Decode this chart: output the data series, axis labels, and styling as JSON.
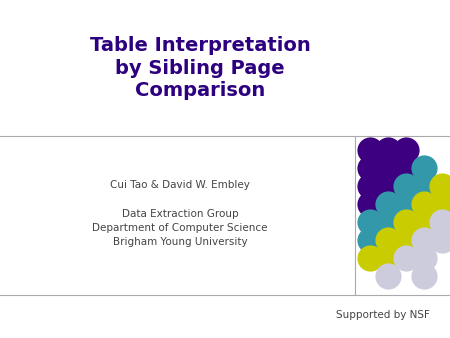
{
  "title_lines": [
    "Table Interpretation",
    "by Sibling Page",
    "Comparison"
  ],
  "title_color": "#2d0080",
  "title_fontsize": 14,
  "title_fontweight": "bold",
  "author_line": "Cui Tao & David W. Embley",
  "affiliation_lines": [
    "Data Extraction Group",
    "Department of Computer Science",
    "Brigham Young University"
  ],
  "text_color": "#444444",
  "text_fontsize": 7.5,
  "supported_text": "Supported by NSF",
  "supported_fontsize": 7.5,
  "bg_color": "#ffffff",
  "divider_color": "#aaaaaa",
  "dot_grid": {
    "rows": 8,
    "cols": 5,
    "colors": [
      [
        "#3d0080",
        "#3d0080",
        "#3d0080",
        "none",
        "none"
      ],
      [
        "#3d0080",
        "#3d0080",
        "#3d0080",
        "#3399aa",
        "none"
      ],
      [
        "#3d0080",
        "#3d0080",
        "#3399aa",
        "#3399aa",
        "#c8cc00"
      ],
      [
        "#3d0080",
        "#3399aa",
        "#3399aa",
        "#c8cc00",
        "#c8cc00"
      ],
      [
        "#3399aa",
        "#3399aa",
        "#c8cc00",
        "#c8cc00",
        "#ccccdd"
      ],
      [
        "#3399aa",
        "#c8cc00",
        "#c8cc00",
        "#ccccdd",
        "#ccccdd"
      ],
      [
        "#c8cc00",
        "#c8cc00",
        "#ccccdd",
        "#ccccdd",
        "none"
      ],
      [
        "none",
        "#ccccdd",
        "none",
        "#ccccdd",
        "none"
      ]
    ]
  }
}
